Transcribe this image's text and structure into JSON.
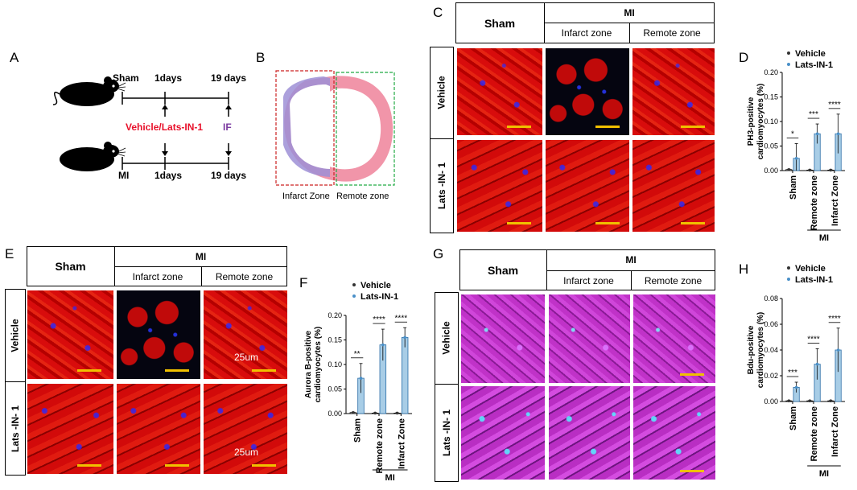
{
  "panels": {
    "A": "A",
    "B": "B",
    "C": "C",
    "D": "D",
    "E": "E",
    "F": "F",
    "G": "G",
    "H": "H"
  },
  "panel_a": {
    "sham": "Sham",
    "mi": "MI",
    "day1_top": "1days",
    "day19_top": "19 days",
    "day1_bottom": "1days",
    "day19_bottom": "19 days",
    "treatment": "Vehicle/Lats-IN-1",
    "if": "IF",
    "colors": {
      "treatment": "#e8102a",
      "if": "#7b3aa0"
    }
  },
  "panel_b": {
    "infarct": "Infarct Zone",
    "remote": "Remote zone",
    "colors": {
      "infarct_box": "#cc2222",
      "remote_box": "#22aa44",
      "tissue": "#f08aa0",
      "infarct_tissue": "#9e8fd6"
    }
  },
  "grid_c": {
    "sham": "Sham",
    "mi": "MI",
    "infarct": "Infarct zone",
    "remote": "Remote zone",
    "vehicle": "Vehicle",
    "lats": "Lats -IN- 1"
  },
  "grid_e": {
    "sham": "Sham",
    "mi": "MI",
    "infarct": "Infarct zone",
    "remote": "Remote zone",
    "vehicle": "Vehicle",
    "lats": "Lats -IN- 1",
    "scale_top": "25um",
    "scale_bottom": "25um"
  },
  "grid_g": {
    "sham": "Sham",
    "mi": "MI",
    "infarct": "Infarct zone",
    "remote": "Remote zone",
    "vehicle": "Vehicle",
    "lats": "Lats -IN- 1"
  },
  "chart_data": [
    {
      "panel": "D",
      "type": "bar",
      "ylabel": "PH3-positive cardiomyocytes (%)",
      "ylim": [
        0,
        0.2
      ],
      "yticks": [
        "0.00",
        "0.05",
        "0.10",
        "0.15",
        "0.20"
      ],
      "categories": [
        "Sham",
        "Remote zone",
        "Infarct Zone"
      ],
      "group_label": "MI",
      "series": [
        {
          "name": "Vehicle",
          "values": [
            0.002,
            0.001,
            0.001
          ],
          "errors": [
            0.001,
            0.001,
            0.001
          ],
          "color": "#333333"
        },
        {
          "name": "Lats-IN-1",
          "values": [
            0.025,
            0.075,
            0.075
          ],
          "errors": [
            0.03,
            0.02,
            0.04
          ],
          "color": "#4a90c8"
        }
      ],
      "significance": [
        "*",
        "***",
        "****"
      ]
    },
    {
      "panel": "F",
      "type": "bar",
      "ylabel": "Aurora B-positive cardiomyocytes (%)",
      "ylim": [
        0,
        0.2
      ],
      "yticks": [
        "0.00",
        "0.05",
        "0.10",
        "0.15",
        "0.20"
      ],
      "categories": [
        "Sham",
        "Remote zone",
        "Infarct Zone"
      ],
      "group_label": "MI",
      "series": [
        {
          "name": "Vehicle",
          "values": [
            0.002,
            0.001,
            0.001
          ],
          "errors": [
            0.001,
            0.001,
            0.001
          ],
          "color": "#333333"
        },
        {
          "name": "Lats-IN-1",
          "values": [
            0.072,
            0.14,
            0.155
          ],
          "errors": [
            0.03,
            0.032,
            0.02
          ],
          "color": "#4a90c8"
        }
      ],
      "significance": [
        "**",
        "****",
        "****"
      ]
    },
    {
      "panel": "H",
      "type": "bar",
      "ylabel": "Bdu-positive cardiomyocytes (%)",
      "ylim": [
        0,
        0.08
      ],
      "yticks": [
        "0.00",
        "0.02",
        "0.04",
        "0.06",
        "0.08"
      ],
      "categories": [
        "Sham",
        "Remote zone",
        "Infarct Zone"
      ],
      "group_label": "MI",
      "series": [
        {
          "name": "Vehicle",
          "values": [
            0.0005,
            0.0005,
            0.0005
          ],
          "errors": [
            0.0003,
            0.0003,
            0.0003
          ],
          "color": "#333333"
        },
        {
          "name": "Lats-IN-1",
          "values": [
            0.011,
            0.029,
            0.04
          ],
          "errors": [
            0.004,
            0.012,
            0.017
          ],
          "color": "#4a90c8"
        }
      ],
      "significance": [
        "***",
        "****",
        "****"
      ]
    }
  ]
}
